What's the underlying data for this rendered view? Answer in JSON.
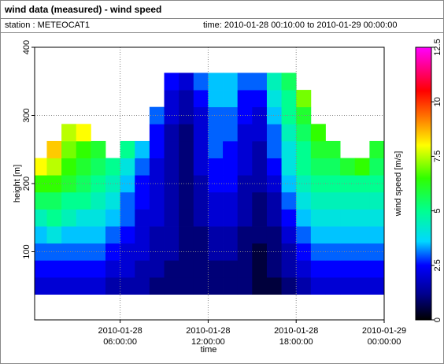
{
  "header": {
    "title": "wind data (measured) - wind speed",
    "station": "station : METEOCAT1",
    "time": "time: 2010-01-28 00:10:00 to 2010-01-29 00:00:00"
  },
  "chart_data": {
    "type": "heatmap",
    "x_label": "time",
    "y_label": "height [m]",
    "colorbar_label": "wind speed [m/s]",
    "xlim": [
      0.17,
      24
    ],
    "xticks": [
      {
        "value": 6,
        "label": "2010-01-28 06:00:00"
      },
      {
        "value": 12,
        "label": "2010-01-28 12:00:00"
      },
      {
        "value": 18,
        "label": "2010-01-28 18:00:00"
      },
      {
        "value": 24,
        "label": "2010-01-29 00:00:00"
      }
    ],
    "ylim": [
      0,
      400
    ],
    "yticks": [
      100,
      200,
      300,
      400
    ],
    "zlim": [
      0,
      12.5
    ],
    "zticks": [
      0,
      2.5,
      5,
      7.5,
      10,
      12.5
    ],
    "grid": true,
    "colorscale": [
      [
        0,
        "#000000"
      ],
      [
        1.2,
        "#00008f"
      ],
      [
        2.5,
        "#0000ff"
      ],
      [
        3.6,
        "#00d8ff"
      ],
      [
        5,
        "#00ff90"
      ],
      [
        6.5,
        "#30ff00"
      ],
      [
        8,
        "#ffff00"
      ],
      [
        9.2,
        "#ff8000"
      ],
      [
        10.5,
        "#ff0000"
      ],
      [
        12.5,
        "#ff00ff"
      ]
    ],
    "x": [
      0.5,
      1.5,
      2.5,
      3.5,
      4.5,
      5.5,
      6.5,
      7.5,
      8.5,
      9.5,
      10.5,
      11.5,
      12.5,
      13.5,
      14.5,
      15.5,
      16.5,
      17.5,
      18.5,
      19.5,
      20.5,
      21.5,
      22.5,
      23.5
    ],
    "x_width": 1,
    "y_height": 25,
    "y": [
      50,
      75,
      100,
      125,
      150,
      175,
      200,
      225,
      250,
      275,
      300,
      325,
      350
    ],
    "z": [
      [
        2,
        2,
        2,
        2,
        2,
        1.5,
        1.5,
        1.5,
        1,
        1,
        1,
        1,
        1,
        1,
        1,
        0.5,
        0.5,
        1,
        1.5,
        2,
        2,
        2,
        2,
        2
      ],
      [
        2.5,
        2.5,
        2.5,
        2.5,
        2.5,
        2,
        2,
        1.5,
        1.5,
        1,
        1,
        1,
        1,
        1,
        1,
        0.5,
        1,
        1.5,
        2,
        2.5,
        2.5,
        2.5,
        2.5,
        2.5
      ],
      [
        3,
        3,
        3,
        3,
        3,
        2.5,
        2,
        2,
        1.5,
        1.5,
        1,
        1,
        1.5,
        1.5,
        1,
        0.5,
        1,
        1.5,
        2.5,
        3,
        3,
        3,
        3,
        3
      ],
      [
        3.5,
        4,
        3.5,
        3.5,
        3.5,
        3,
        2.5,
        2,
        1.5,
        1.5,
        1,
        1,
        1.5,
        1.5,
        1,
        1,
        1,
        2,
        3,
        3.5,
        3.5,
        3.5,
        3.5,
        3.5
      ],
      [
        4.5,
        5,
        4.5,
        4,
        4,
        3.5,
        3,
        2,
        2,
        1.5,
        1,
        1.5,
        2,
        2,
        1.5,
        1,
        1.5,
        2.5,
        3.5,
        4,
        4,
        4,
        4,
        4
      ],
      [
        5.5,
        5.5,
        5,
        5,
        4.5,
        4,
        3,
        2.5,
        2,
        1.5,
        1,
        1.5,
        2,
        2,
        1.5,
        1,
        1.5,
        3,
        4,
        4.5,
        4.5,
        4.5,
        4.5,
        4.5
      ],
      [
        6.5,
        6.5,
        6,
        5.5,
        5,
        4.5,
        3.5,
        2.5,
        2,
        1.5,
        1,
        1.5,
        2.5,
        2.5,
        1.5,
        1.5,
        2,
        3.5,
        4.5,
        5,
        5,
        5,
        5,
        5
      ],
      [
        8,
        7.5,
        6.5,
        6,
        5.5,
        5,
        4,
        3,
        2,
        1.5,
        1,
        2,
        2.5,
        2.5,
        2,
        1.5,
        2.5,
        4,
        5,
        5.5,
        5.5,
        6,
        6.5,
        5.5
      ],
      [
        null,
        8.5,
        7,
        6.5,
        6,
        null,
        5,
        3.5,
        2.5,
        1.5,
        1,
        2,
        3,
        2.5,
        2,
        1.5,
        3,
        4,
        5,
        6,
        6,
        null,
        null,
        6
      ],
      [
        null,
        null,
        7.5,
        8,
        null,
        null,
        null,
        null,
        2.5,
        1.5,
        1,
        2,
        3,
        3,
        2,
        2,
        3,
        4.5,
        5.5,
        6.5,
        null,
        null,
        null,
        null
      ],
      [
        null,
        null,
        null,
        null,
        null,
        null,
        null,
        null,
        3,
        2,
        1.5,
        2,
        3,
        3,
        2.5,
        2,
        3.5,
        5,
        6,
        null,
        null,
        null,
        null,
        null
      ],
      [
        null,
        null,
        null,
        null,
        null,
        null,
        null,
        null,
        null,
        2,
        1.5,
        2.5,
        3.5,
        3.5,
        2.5,
        2.5,
        4,
        5,
        7,
        null,
        null,
        null,
        null,
        null
      ],
      [
        null,
        null,
        null,
        null,
        null,
        null,
        null,
        null,
        null,
        2.5,
        2,
        3,
        3.5,
        3.5,
        3,
        3,
        4.5,
        5.5,
        null,
        null,
        null,
        null,
        null,
        null
      ]
    ]
  }
}
